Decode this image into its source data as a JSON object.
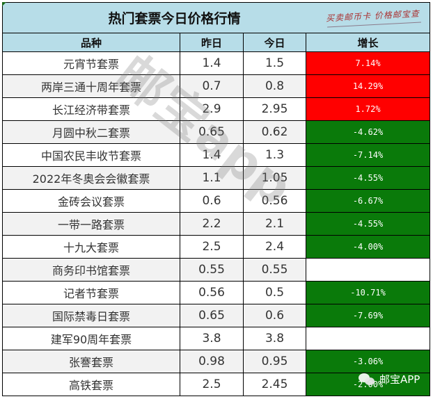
{
  "title": "热门套票今日价格行情",
  "slogan": "买卖邮币卡 价格邮宝查",
  "headers": {
    "name": "品种",
    "yesterday": "昨日",
    "today": "今日",
    "change": "增长"
  },
  "colors": {
    "header_bg": "#b7dde8",
    "up": "#ff0000",
    "down": "#0a7a0a",
    "alt_row": "#f2f2f2"
  },
  "rows": [
    {
      "name": "元宵节套票",
      "yesterday": "1.4",
      "today": "1.5",
      "change": "7.14%",
      "trend": "up"
    },
    {
      "name": "两岸三通十周年套票",
      "yesterday": "0.7",
      "today": "0.8",
      "change": "14.29%",
      "trend": "up"
    },
    {
      "name": "长江经济带套票",
      "yesterday": "2.9",
      "today": "2.95",
      "change": "1.72%",
      "trend": "up"
    },
    {
      "name": "月圆中秋二套票",
      "yesterday": "0.65",
      "today": "0.62",
      "change": "-4.62%",
      "trend": "down"
    },
    {
      "name": "中国农民丰收节套票",
      "yesterday": "1.4",
      "today": "1.3",
      "change": "-7.14%",
      "trend": "down"
    },
    {
      "name": "2022年冬奥会会徽套票",
      "yesterday": "1.1",
      "today": "1.05",
      "change": "-4.55%",
      "trend": "down"
    },
    {
      "name": "金砖会议套票",
      "yesterday": "0.6",
      "today": "0.56",
      "change": "-6.67%",
      "trend": "down"
    },
    {
      "name": "一带一路套票",
      "yesterday": "2.2",
      "today": "2.1",
      "change": "-4.55%",
      "trend": "down"
    },
    {
      "name": "十九大套票",
      "yesterday": "2.5",
      "today": "2.4",
      "change": "-4.00%",
      "trend": "down"
    },
    {
      "name": "商务印书馆套票",
      "yesterday": "0.55",
      "today": "0.55",
      "change": "",
      "trend": "flat"
    },
    {
      "name": "记者节套票",
      "yesterday": "0.56",
      "today": "0.5",
      "change": "-10.71%",
      "trend": "down"
    },
    {
      "name": "国际禁毒日套票",
      "yesterday": "0.65",
      "today": "0.6",
      "change": "-7.69%",
      "trend": "down"
    },
    {
      "name": "建军90周年套票",
      "yesterday": "3.8",
      "today": "3.8",
      "change": "",
      "trend": "flat"
    },
    {
      "name": "张謇套票",
      "yesterday": "0.98",
      "today": "0.95",
      "change": "-3.06%",
      "trend": "down"
    },
    {
      "name": "高铁套票",
      "yesterday": "2.5",
      "today": "2.45",
      "change": "-2.00%",
      "trend": "down"
    }
  ],
  "watermark": "邮宝app",
  "wechat_badge": "邮宝APP"
}
